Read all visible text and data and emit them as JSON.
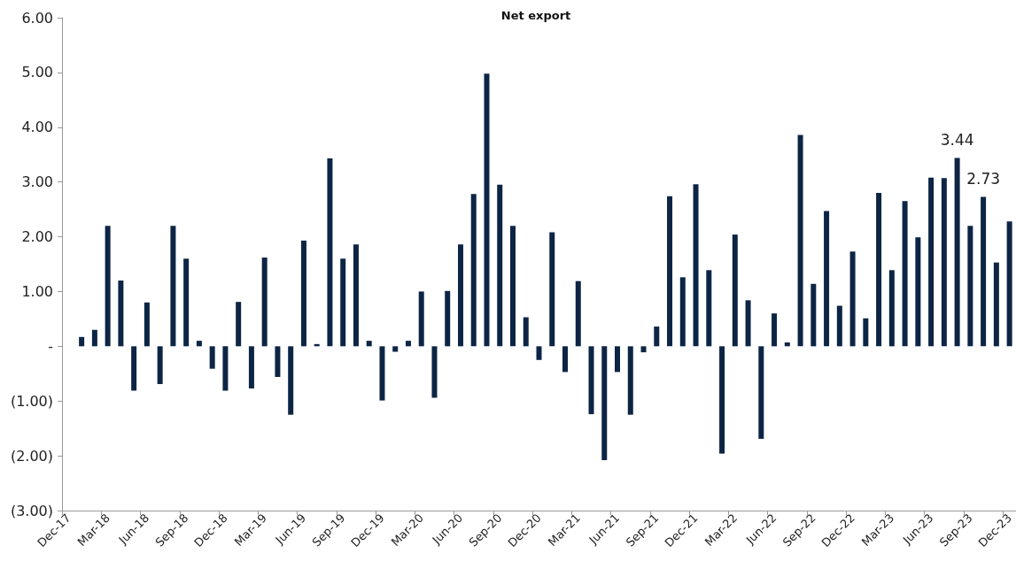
{
  "chart_data": {
    "type": "bar",
    "title": "Net export",
    "categories": [
      "Dec-17",
      null,
      null,
      "Mar-18",
      null,
      null,
      "Jun-18",
      null,
      null,
      "Sep-18",
      null,
      null,
      "Dec-18",
      null,
      null,
      "Mar-19",
      null,
      null,
      "Jun-19",
      null,
      null,
      "Sep-19",
      null,
      null,
      "Dec-19",
      null,
      null,
      "Mar-20",
      null,
      null,
      "Jun-20",
      null,
      null,
      "Sep-20",
      null,
      null,
      "Dec-20",
      null,
      null,
      "Mar-21",
      null,
      null,
      "Jun-21",
      null,
      null,
      "Sep-21",
      null,
      null,
      "Dec-21",
      null,
      null,
      "Mar-22",
      null,
      null,
      "Jun-22",
      null,
      null,
      "Sep-22",
      null,
      null,
      "Dec-22",
      null,
      null,
      "Mar-23",
      null,
      null,
      "Jun-23",
      null,
      null,
      "Sep-23",
      null,
      null,
      "Dec-23"
    ],
    "values": [
      null,
      0.17,
      0.3,
      2.2,
      1.2,
      -0.81,
      0.8,
      -0.69,
      2.2,
      1.6,
      0.1,
      -0.41,
      -0.81,
      0.81,
      -0.77,
      1.62,
      -0.56,
      -1.25,
      1.93,
      0.04,
      3.43,
      1.6,
      1.86,
      0.1,
      -0.99,
      -0.1,
      0.1,
      1.0,
      -0.94,
      1.01,
      1.86,
      2.78,
      4.98,
      2.95,
      2.2,
      0.53,
      -0.25,
      2.08,
      -0.47,
      1.19,
      -1.24,
      -2.08,
      -0.47,
      -1.25,
      -0.11,
      0.36,
      2.74,
      1.26,
      2.96,
      1.39,
      -1.96,
      2.04,
      0.84,
      -1.69,
      0.6,
      0.07,
      3.86,
      1.14,
      2.47,
      0.74,
      1.73,
      0.51,
      2.8,
      1.39,
      2.65,
      1.99,
      3.08,
      3.07,
      3.44,
      2.2,
      2.73,
      1.53,
      2.28
    ],
    "value_labels": [
      null,
      null,
      null,
      null,
      null,
      null,
      null,
      null,
      null,
      null,
      null,
      null,
      null,
      null,
      null,
      null,
      null,
      null,
      null,
      null,
      null,
      null,
      null,
      null,
      null,
      null,
      null,
      null,
      null,
      null,
      null,
      null,
      null,
      null,
      null,
      null,
      null,
      null,
      null,
      null,
      null,
      null,
      null,
      null,
      null,
      null,
      null,
      null,
      null,
      null,
      null,
      null,
      null,
      null,
      null,
      null,
      null,
      null,
      null,
      null,
      null,
      null,
      null,
      null,
      null,
      null,
      null,
      null,
      "3.44",
      null,
      "2.73",
      null,
      null
    ],
    "color": "#0d2545",
    "ylim": [
      -3,
      6
    ],
    "yticks": [
      {
        "value": -3,
        "label": "(3.00)"
      },
      {
        "value": -2,
        "label": "(2.00)"
      },
      {
        "value": -1,
        "label": "(1.00)"
      },
      {
        "value": 0,
        "label": "-"
      },
      {
        "value": 1,
        "label": "1.00"
      },
      {
        "value": 2,
        "label": "2.00"
      },
      {
        "value": 3,
        "label": "3.00"
      },
      {
        "value": 4,
        "label": "4.00"
      },
      {
        "value": 5,
        "label": "5.00"
      },
      {
        "value": 6,
        "label": "6.00"
      }
    ]
  }
}
